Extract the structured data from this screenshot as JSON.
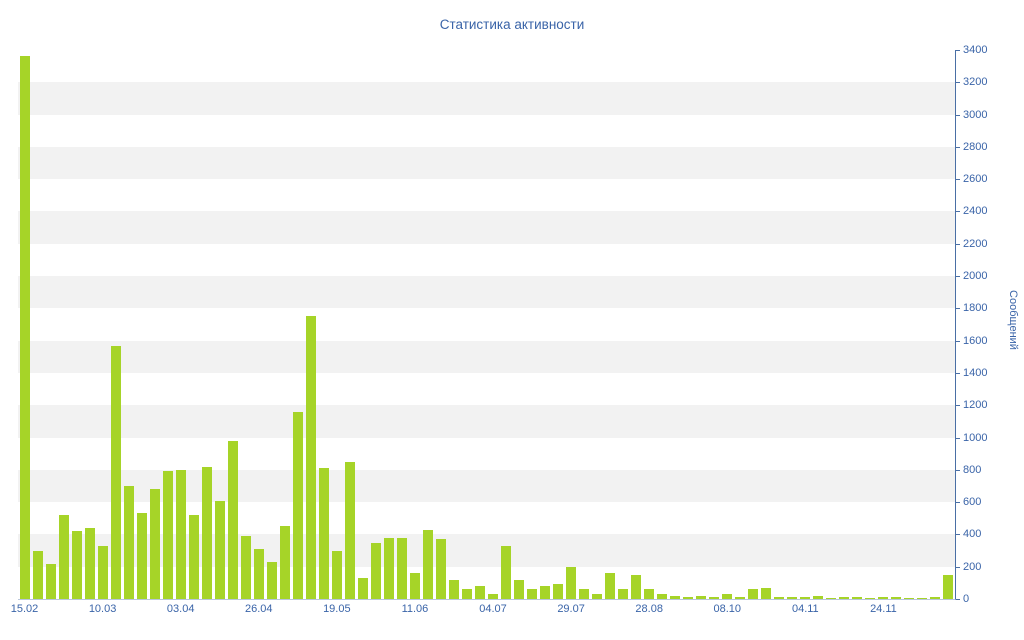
{
  "chart_data": {
    "type": "bar",
    "title": "Статистика активности",
    "ylabel": "Сообщений",
    "xlabel": "",
    "ylim": [
      0,
      3400
    ],
    "ytick_step": 200,
    "bar_color": "#a6d428",
    "stripe_color": "#f2f2f2",
    "background_color": "#ffffff",
    "text_color": "#3a64a8",
    "axis_color": "#4a6fa5",
    "legend": "none",
    "grid": "striped-bands",
    "x_tick_labels": [
      "15.02",
      "10.03",
      "03.04",
      "26.04",
      "19.05",
      "11.06",
      "04.07",
      "29.07",
      "28.08",
      "08.10",
      "04.11",
      "24.11"
    ],
    "x_tick_positions": [
      0,
      6,
      12,
      18,
      24,
      30,
      36,
      42,
      48,
      54,
      60,
      66
    ],
    "values": [
      3360,
      300,
      215,
      520,
      420,
      440,
      330,
      1570,
      700,
      530,
      680,
      790,
      800,
      520,
      820,
      610,
      980,
      390,
      310,
      230,
      450,
      1160,
      1750,
      810,
      300,
      850,
      130,
      350,
      380,
      380,
      160,
      430,
      370,
      120,
      60,
      80,
      30,
      330,
      120,
      60,
      80,
      90,
      200,
      60,
      30,
      160,
      60,
      150,
      60,
      30,
      20,
      15,
      20,
      15,
      30,
      15,
      60,
      70,
      15,
      10,
      10,
      20,
      5,
      10,
      15,
      5,
      10,
      15,
      5,
      8,
      10,
      150
    ]
  }
}
